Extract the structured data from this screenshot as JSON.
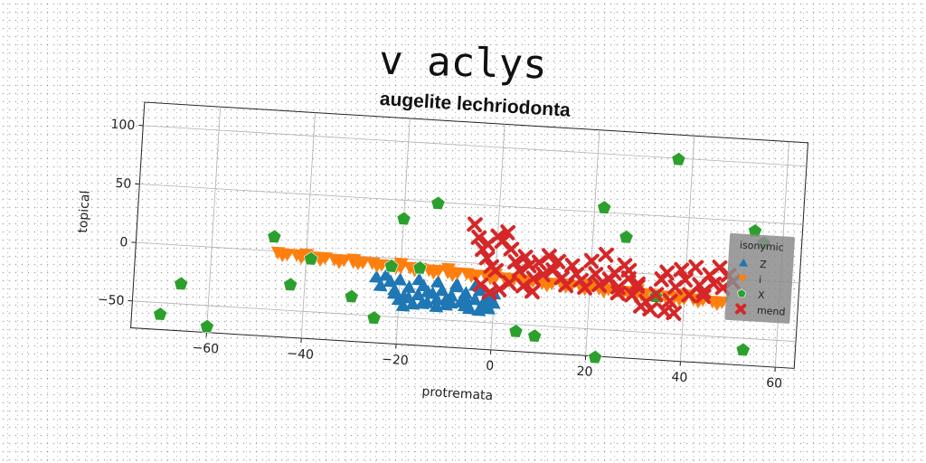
{
  "page_title": "v aclys",
  "chart_data": {
    "type": "scatter",
    "title": "augelite lechriodonta",
    "xlabel": "protremata",
    "ylabel": "topical",
    "xlim": [
      -76,
      64
    ],
    "ylim": [
      -73,
      120
    ],
    "xticks": [
      -60,
      -40,
      -20,
      0,
      20,
      40,
      60
    ],
    "xtick_labels": [
      "−60",
      "−40",
      "−20",
      "0",
      "20",
      "40",
      "60"
    ],
    "yticks": [
      -50,
      0,
      50,
      100
    ],
    "ytick_labels": [
      "−50",
      "0",
      "50",
      "100"
    ],
    "grid": true,
    "legend": {
      "title": "isonymic",
      "placement": "right"
    },
    "series": [
      {
        "name": "Z",
        "marker": "triangle-up",
        "color": "#1f77b4",
        "points": [
          [
            -25,
            -17
          ],
          [
            -23,
            -15
          ],
          [
            -22,
            -20
          ],
          [
            -21,
            -27
          ],
          [
            -20,
            -35
          ],
          [
            -19,
            -32
          ],
          [
            -18,
            -24
          ],
          [
            -17,
            -38
          ],
          [
            -16,
            -30
          ],
          [
            -15,
            -22
          ],
          [
            -14,
            -36
          ],
          [
            -13,
            -28
          ],
          [
            -12,
            -33
          ],
          [
            -11,
            -25
          ],
          [
            -10,
            -37
          ],
          [
            -9,
            -29
          ],
          [
            -8,
            -21
          ],
          [
            -7,
            -34
          ],
          [
            -6,
            -26
          ],
          [
            -5,
            -39
          ],
          [
            -4,
            -31
          ],
          [
            -3,
            -23
          ],
          [
            -2,
            -36
          ],
          [
            -1,
            -28
          ],
          [
            0,
            -33
          ],
          [
            -1,
            -38
          ],
          [
            -3,
            -40
          ],
          [
            -6,
            -37
          ],
          [
            -9,
            -35
          ],
          [
            -12,
            -39
          ],
          [
            -15,
            -37
          ],
          [
            -18,
            -33
          ],
          [
            -21,
            -30
          ],
          [
            -24,
            -24
          ],
          [
            -20,
            -18
          ],
          [
            -16,
            -17
          ],
          [
            -12,
            -18
          ],
          [
            -8,
            -19
          ],
          [
            -4,
            -19
          ],
          [
            0,
            -25
          ],
          [
            -2,
            -32
          ],
          [
            -6,
            -30
          ],
          [
            -10,
            -32
          ],
          [
            -14,
            -27
          ],
          [
            -19,
            -40
          ]
        ]
      },
      {
        "name": "i",
        "marker": "triangle-down",
        "color": "#ff7f0e",
        "points": [
          [
            -46,
            -1
          ],
          [
            -44,
            -2
          ],
          [
            -42,
            -2
          ],
          [
            -40,
            -3
          ],
          [
            -38,
            -3
          ],
          [
            -36,
            -3
          ],
          [
            -34,
            -4
          ],
          [
            -32,
            -4
          ],
          [
            -30,
            -5
          ],
          [
            -28,
            -5
          ],
          [
            -26,
            -5
          ],
          [
            -24,
            -6
          ],
          [
            -22,
            -6
          ],
          [
            -20,
            -7
          ],
          [
            -18,
            -7
          ],
          [
            -16,
            -7
          ],
          [
            -14,
            -8
          ],
          [
            -12,
            -8
          ],
          [
            -10,
            -9
          ],
          [
            -8,
            -9
          ],
          [
            -6,
            -9
          ],
          [
            -4,
            -10
          ],
          [
            -2,
            -10
          ],
          [
            0,
            -11
          ],
          [
            2,
            -11
          ],
          [
            4,
            -11
          ],
          [
            6,
            -12
          ],
          [
            8,
            -12
          ],
          [
            10,
            -13
          ],
          [
            12,
            -13
          ],
          [
            14,
            -13
          ],
          [
            16,
            -14
          ],
          [
            18,
            -14
          ],
          [
            20,
            -15
          ],
          [
            22,
            -15
          ],
          [
            24,
            -15
          ],
          [
            26,
            -16
          ],
          [
            28,
            -16
          ],
          [
            30,
            -17
          ],
          [
            32,
            -17
          ],
          [
            34,
            -17
          ],
          [
            36,
            -18
          ],
          [
            38,
            -18
          ],
          [
            40,
            -19
          ],
          [
            42,
            -19
          ],
          [
            44,
            -19
          ],
          [
            46,
            -20
          ],
          [
            48,
            -20
          ],
          [
            -45,
            -3
          ],
          [
            -41,
            -4
          ],
          [
            -37,
            -5
          ],
          [
            -33,
            -6
          ],
          [
            -29,
            -6
          ],
          [
            -25,
            -7
          ],
          [
            -21,
            -8
          ],
          [
            -17,
            -9
          ],
          [
            -13,
            -10
          ],
          [
            -9,
            -11
          ],
          [
            -5,
            -11
          ],
          [
            -1,
            -12
          ],
          [
            3,
            -13
          ],
          [
            7,
            -14
          ],
          [
            11,
            -15
          ],
          [
            15,
            -15
          ],
          [
            19,
            -16
          ],
          [
            23,
            -17
          ],
          [
            27,
            -18
          ],
          [
            31,
            -18
          ],
          [
            35,
            -19
          ],
          [
            39,
            -20
          ],
          [
            43,
            -21
          ],
          [
            47,
            -22
          ],
          [
            -40,
            -1
          ],
          [
            -30,
            -3
          ],
          [
            -20,
            -4
          ],
          [
            -10,
            -6
          ],
          [
            0,
            -8
          ],
          [
            10,
            -10
          ],
          [
            20,
            -12
          ],
          [
            30,
            -14
          ],
          [
            40,
            -16
          ]
        ]
      },
      {
        "name": "X",
        "marker": "pentagon",
        "color": "#2ca02c",
        "points": [
          [
            -70,
            -60
          ],
          [
            -66,
            -33
          ],
          [
            -60,
            -68
          ],
          [
            -47,
            12
          ],
          [
            -43,
            -28
          ],
          [
            -39,
            -5
          ],
          [
            -30,
            -35
          ],
          [
            -25,
            -52
          ],
          [
            -22,
            -7
          ],
          [
            -20,
            34
          ],
          [
            -16,
            -7
          ],
          [
            -13,
            49
          ],
          [
            5,
            -56
          ],
          [
            9,
            -59
          ],
          [
            22,
            54
          ],
          [
            22,
            -74
          ],
          [
            27,
            30
          ],
          [
            34,
            -19
          ],
          [
            37,
            99
          ],
          [
            53,
            -60
          ],
          [
            54,
            42
          ],
          [
            56,
            32
          ]
        ]
      },
      {
        "name": "mend",
        "marker": "x",
        "color": "#d62728",
        "points": [
          [
            -5,
            33
          ],
          [
            -4,
            22
          ],
          [
            -3,
            12
          ],
          [
            -2,
            5
          ],
          [
            -1,
            -2
          ],
          [
            0,
            24
          ],
          [
            1,
            20
          ],
          [
            2,
            28
          ],
          [
            3,
            14
          ],
          [
            4,
            3
          ],
          [
            5,
            -4
          ],
          [
            6,
            8
          ],
          [
            7,
            1
          ],
          [
            8,
            -10
          ],
          [
            9,
            4
          ],
          [
            10,
            -6
          ],
          [
            11,
            10
          ],
          [
            12,
            -2
          ],
          [
            13,
            6
          ],
          [
            14,
            -8
          ],
          [
            15,
            -14
          ],
          [
            16,
            3
          ],
          [
            17,
            -4
          ],
          [
            18,
            -9
          ],
          [
            19,
            -15
          ],
          [
            20,
            8
          ],
          [
            21,
            -3
          ],
          [
            22,
            -12
          ],
          [
            23,
            14
          ],
          [
            24,
            -7
          ],
          [
            25,
            -1
          ],
          [
            26,
            -13
          ],
          [
            27,
            6
          ],
          [
            28,
            -5
          ],
          [
            29,
            -19
          ],
          [
            30,
            -11
          ],
          [
            31,
            -28
          ],
          [
            32,
            -24
          ],
          [
            33,
            -30
          ],
          [
            34,
            -17
          ],
          [
            35,
            -4
          ],
          [
            36,
            2
          ],
          [
            37,
            -22
          ],
          [
            38,
            -10
          ],
          [
            39,
            5
          ],
          [
            40,
            -3
          ],
          [
            41,
            -16
          ],
          [
            42,
            8
          ],
          [
            43,
            -7
          ],
          [
            44,
            -12
          ],
          [
            45,
            2
          ],
          [
            46,
            -5
          ],
          [
            47,
            9
          ],
          [
            48,
            -8
          ],
          [
            49,
            3
          ],
          [
            50,
            -2
          ],
          [
            -3,
            -18
          ],
          [
            -1,
            -24
          ],
          [
            1,
            -21
          ],
          [
            3,
            -15
          ],
          [
            6,
            -17
          ],
          [
            -2,
            17
          ],
          [
            0,
            -5
          ],
          [
            8,
            -21
          ],
          [
            28,
            2
          ],
          [
            36,
            -31
          ],
          [
            38,
            -32
          ],
          [
            26,
            -18
          ],
          [
            30,
            -9
          ],
          [
            44,
            -16
          ]
        ]
      }
    ]
  }
}
